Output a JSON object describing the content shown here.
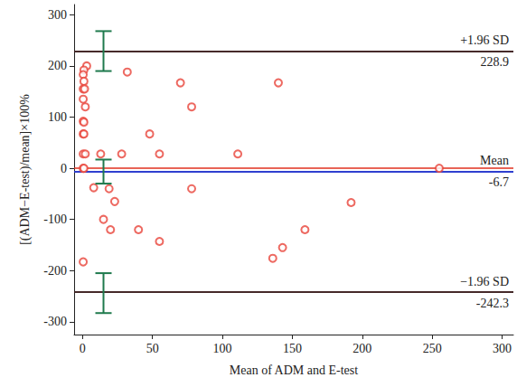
{
  "chart_data": {
    "type": "scatter",
    "x_label": "Mean of ADM and E-test",
    "y_label": "[(ADM−E-test)/mean]×100%",
    "xlim": [
      -6,
      308
    ],
    "xticks": [
      0,
      50,
      100,
      150,
      200,
      250,
      300
    ],
    "ylim": [
      -325,
      320
    ],
    "yticks": [
      -300,
      -200,
      -100,
      0,
      100,
      200,
      300
    ],
    "grid": false,
    "marker": "open_circle",
    "color": "#e8443a",
    "x": [
      3,
      1,
      0.5,
      1,
      0.5,
      1.5,
      0.5,
      2,
      0.5,
      1,
      0.5,
      1,
      0.5,
      2,
      0.5,
      1,
      0.5,
      8,
      13,
      15,
      19,
      20,
      23,
      28,
      32,
      40,
      48,
      55,
      55,
      70,
      78,
      78,
      111,
      136,
      140,
      143,
      159,
      192,
      255
    ],
    "values": [
      200,
      192,
      183,
      170,
      155,
      155,
      135,
      120,
      92,
      90,
      67,
      67,
      28,
      28,
      0,
      0,
      -183,
      -38,
      28,
      -100,
      -40,
      -120,
      -65,
      28,
      188,
      -120,
      67,
      28,
      -143,
      167,
      120,
      -40,
      28,
      -176,
      167,
      -155,
      -120,
      -67,
      0
    ],
    "reference_lines": [
      {
        "value": 228.9,
        "label": "+1.96 SD",
        "color": "#3a1c1c"
      },
      {
        "value": 0,
        "color": "#e0301e"
      },
      {
        "value": -6.7,
        "label": "Mean",
        "color": "#2233cc"
      },
      {
        "value": -242.3,
        "label": "−1.96 SD",
        "color": "#3a1c1c"
      }
    ],
    "confidence_intervals": {
      "color": "#1f7a4d",
      "x": [
        15,
        15,
        15
      ],
      "low": [
        190,
        -30,
        -283
      ],
      "high": [
        268,
        17,
        -205
      ]
    }
  }
}
